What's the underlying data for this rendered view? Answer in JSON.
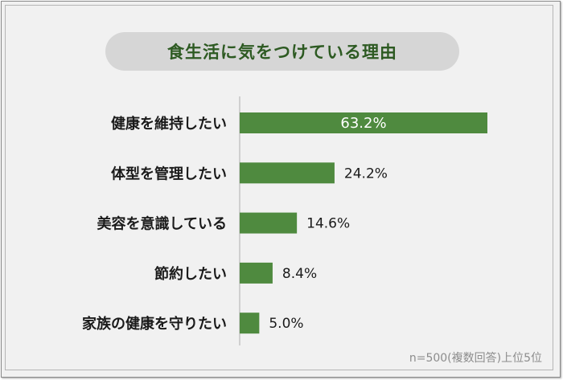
{
  "chart_data": {
    "type": "bar",
    "orientation": "horizontal",
    "title": "食生活に気をつけている理由",
    "categories": [
      "健康を維持したい",
      "体型を管理したい",
      "美容を意識している",
      "節約したい",
      "家族の健康を守りたい"
    ],
    "values": [
      63.2,
      24.2,
      14.6,
      8.4,
      5.0
    ],
    "value_labels": [
      "63.2%",
      "24.2%",
      "14.6%",
      "8.4%",
      "5.0%"
    ],
    "xlim": [
      0,
      63.2
    ],
    "grid": false,
    "legend": "none",
    "bar_color": "#4f8a3f",
    "note": "n=500(複数回答)上位5位"
  }
}
